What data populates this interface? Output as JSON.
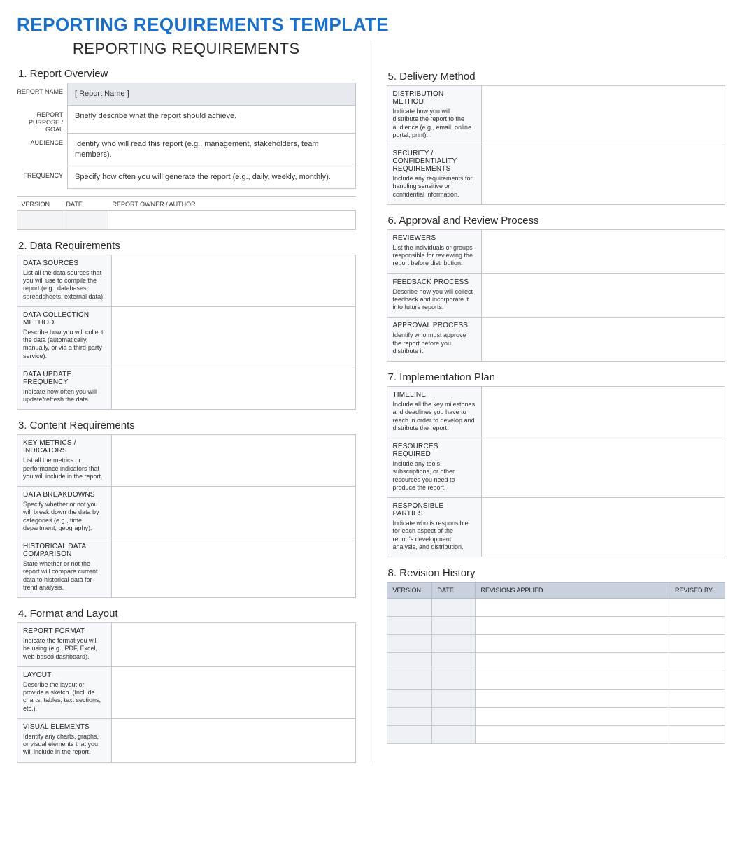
{
  "title": "REPORTING REQUIREMENTS TEMPLATE",
  "subtitle": "REPORTING REQUIREMENTS",
  "section1": {
    "heading": "1. Report Overview",
    "rows": [
      {
        "label": "REPORT NAME",
        "text": "[ Report Name ]",
        "shaded": true
      },
      {
        "label": "REPORT PURPOSE / GOAL",
        "text": "Briefly describe what the report should achieve.",
        "shaded": false
      },
      {
        "label": "AUDIENCE",
        "text": "Identify who will read this report (e.g., management, stakeholders, team members).",
        "shaded": false
      },
      {
        "label": "FREQUENCY",
        "text": "Specify how often you will generate the report (e.g., daily, weekly, monthly).",
        "shaded": false
      }
    ],
    "mini_headers": [
      "VERSION",
      "DATE",
      "REPORT OWNER / AUTHOR"
    ]
  },
  "section2": {
    "heading": "2. Data Requirements",
    "rows": [
      {
        "title": "DATA SOURCES",
        "desc": "List all the data sources that you will use to compile the report (e.g., databases, spreadsheets, external data)."
      },
      {
        "title": "DATA COLLECTION METHOD",
        "desc": "Describe how you will collect the data (automatically, manually, or via a third-party service)."
      },
      {
        "title": "DATA UPDATE FREQUENCY",
        "desc": "Indicate how often you will update/refresh the data."
      }
    ]
  },
  "section3": {
    "heading": "3. Content Requirements",
    "rows": [
      {
        "title": "KEY METRICS / INDICATORS",
        "desc": "List all the metrics or performance indicators that you will include in the report."
      },
      {
        "title": "DATA BREAKDOWNS",
        "desc": "Specify whether or not you will break down the data by categories (e.g., time, department, geography)."
      },
      {
        "title": "HISTORICAL DATA COMPARISON",
        "desc": "State whether or not the report will compare current data to historical data for trend analysis."
      }
    ]
  },
  "section4": {
    "heading": "4. Format and Layout",
    "rows": [
      {
        "title": "REPORT FORMAT",
        "desc": "Indicate the format you will be using (e.g., PDF, Excel, web-based dashboard)."
      },
      {
        "title": "LAYOUT",
        "desc": "Describe the layout or provide a sketch. (Include charts, tables, text sections, etc.)."
      },
      {
        "title": "VISUAL ELEMENTS",
        "desc": "Identify any charts, graphs, or visual elements that you will include in the report."
      }
    ]
  },
  "section5": {
    "heading": "5. Delivery Method",
    "rows": [
      {
        "title": "DISTRIBUTION METHOD",
        "desc": "Indicate how you will distribute the report to the audience (e.g., email, online portal, print)."
      },
      {
        "title": "SECURITY / CONFIDENTIALITY REQUIREMENTS",
        "desc": "Include any requirements for handling sensitive or confidential information."
      }
    ]
  },
  "section6": {
    "heading": "6. Approval and Review Process",
    "rows": [
      {
        "title": "REVIEWERS",
        "desc": "List the individuals or groups responsible for reviewing the report before distribution."
      },
      {
        "title": "FEEDBACK PROCESS",
        "desc": "Describe how you will collect feedback and incorporate it into future reports."
      },
      {
        "title": "APPROVAL PROCESS",
        "desc": "Identify who must approve the report before you distribute it."
      }
    ]
  },
  "section7": {
    "heading": "7. Implementation Plan",
    "rows": [
      {
        "title": "TIMELINE",
        "desc": "Include all the key milestones and deadlines you have to reach in order to develop and distribute the report."
      },
      {
        "title": "RESOURCES REQUIRED",
        "desc": "Include any tools, subscriptions, or other resources you need to produce the report."
      },
      {
        "title": "RESPONSIBLE PARTIES",
        "desc": "Indicate who is responsible for each aspect of the report's development, analysis, and distribution."
      }
    ]
  },
  "section8": {
    "heading": "8. Revision History",
    "headers": [
      "VERSION",
      "DATE",
      "REVISIONS APPLIED",
      "REVISED BY"
    ],
    "row_count": 8
  },
  "colors": {
    "title": "#1a6fc9",
    "border": "#c5c7ca",
    "label_bg": "#f6f8fb",
    "rev_header_bg": "#c9d1df",
    "rev_shaded": "#edf0f5"
  }
}
